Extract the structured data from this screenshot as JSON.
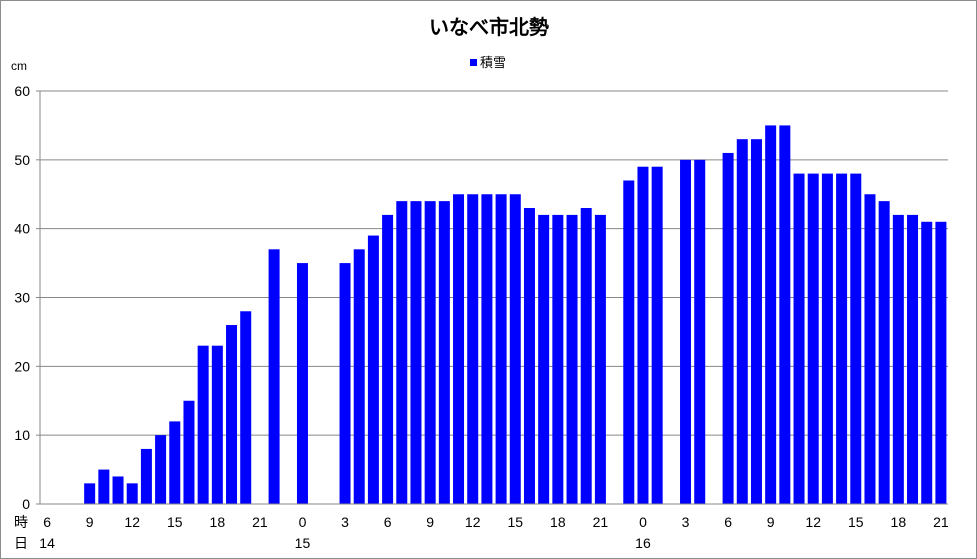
{
  "chart_data": {
    "type": "bar",
    "title": "いなべ市北勢",
    "ylabel": "cm",
    "ylim": [
      0,
      60
    ],
    "yticks": [
      0,
      10,
      20,
      30,
      40,
      50,
      60
    ],
    "grid": true,
    "legend_position": "top-center",
    "bar_color": "#0000ff",
    "series": [
      {
        "name": "積雪",
        "values": [
          null,
          null,
          null,
          3,
          5,
          4,
          3,
          8,
          10,
          12,
          15,
          23,
          23,
          26,
          28,
          null,
          37,
          null,
          35,
          null,
          null,
          35,
          37,
          39,
          42,
          44,
          44,
          44,
          44,
          45,
          45,
          45,
          45,
          45,
          43,
          42,
          42,
          42,
          43,
          42,
          null,
          47,
          49,
          49,
          null,
          50,
          50,
          null,
          51,
          53,
          53,
          55,
          55,
          48,
          48,
          48,
          48,
          48,
          45,
          44,
          42,
          42,
          41,
          41
        ]
      }
    ],
    "x_axis": {
      "row1_label": "時",
      "row2_label": "日",
      "hour_ticks": [
        {
          "index": 0,
          "label": "6"
        },
        {
          "index": 3,
          "label": "9"
        },
        {
          "index": 6,
          "label": "12"
        },
        {
          "index": 9,
          "label": "15"
        },
        {
          "index": 12,
          "label": "18"
        },
        {
          "index": 15,
          "label": "21"
        },
        {
          "index": 18,
          "label": "0"
        },
        {
          "index": 21,
          "label": "3"
        },
        {
          "index": 24,
          "label": "6"
        },
        {
          "index": 27,
          "label": "9"
        },
        {
          "index": 30,
          "label": "12"
        },
        {
          "index": 33,
          "label": "15"
        },
        {
          "index": 36,
          "label": "18"
        },
        {
          "index": 39,
          "label": "21"
        },
        {
          "index": 42,
          "label": "0"
        },
        {
          "index": 45,
          "label": "3"
        },
        {
          "index": 48,
          "label": "6"
        },
        {
          "index": 51,
          "label": "9"
        },
        {
          "index": 54,
          "label": "12"
        },
        {
          "index": 57,
          "label": "15"
        },
        {
          "index": 60,
          "label": "18"
        },
        {
          "index": 63,
          "label": "21"
        }
      ],
      "day_ticks": [
        {
          "index": 0,
          "label": "14"
        },
        {
          "index": 18,
          "label": "15"
        },
        {
          "index": 42,
          "label": "16"
        }
      ]
    }
  }
}
